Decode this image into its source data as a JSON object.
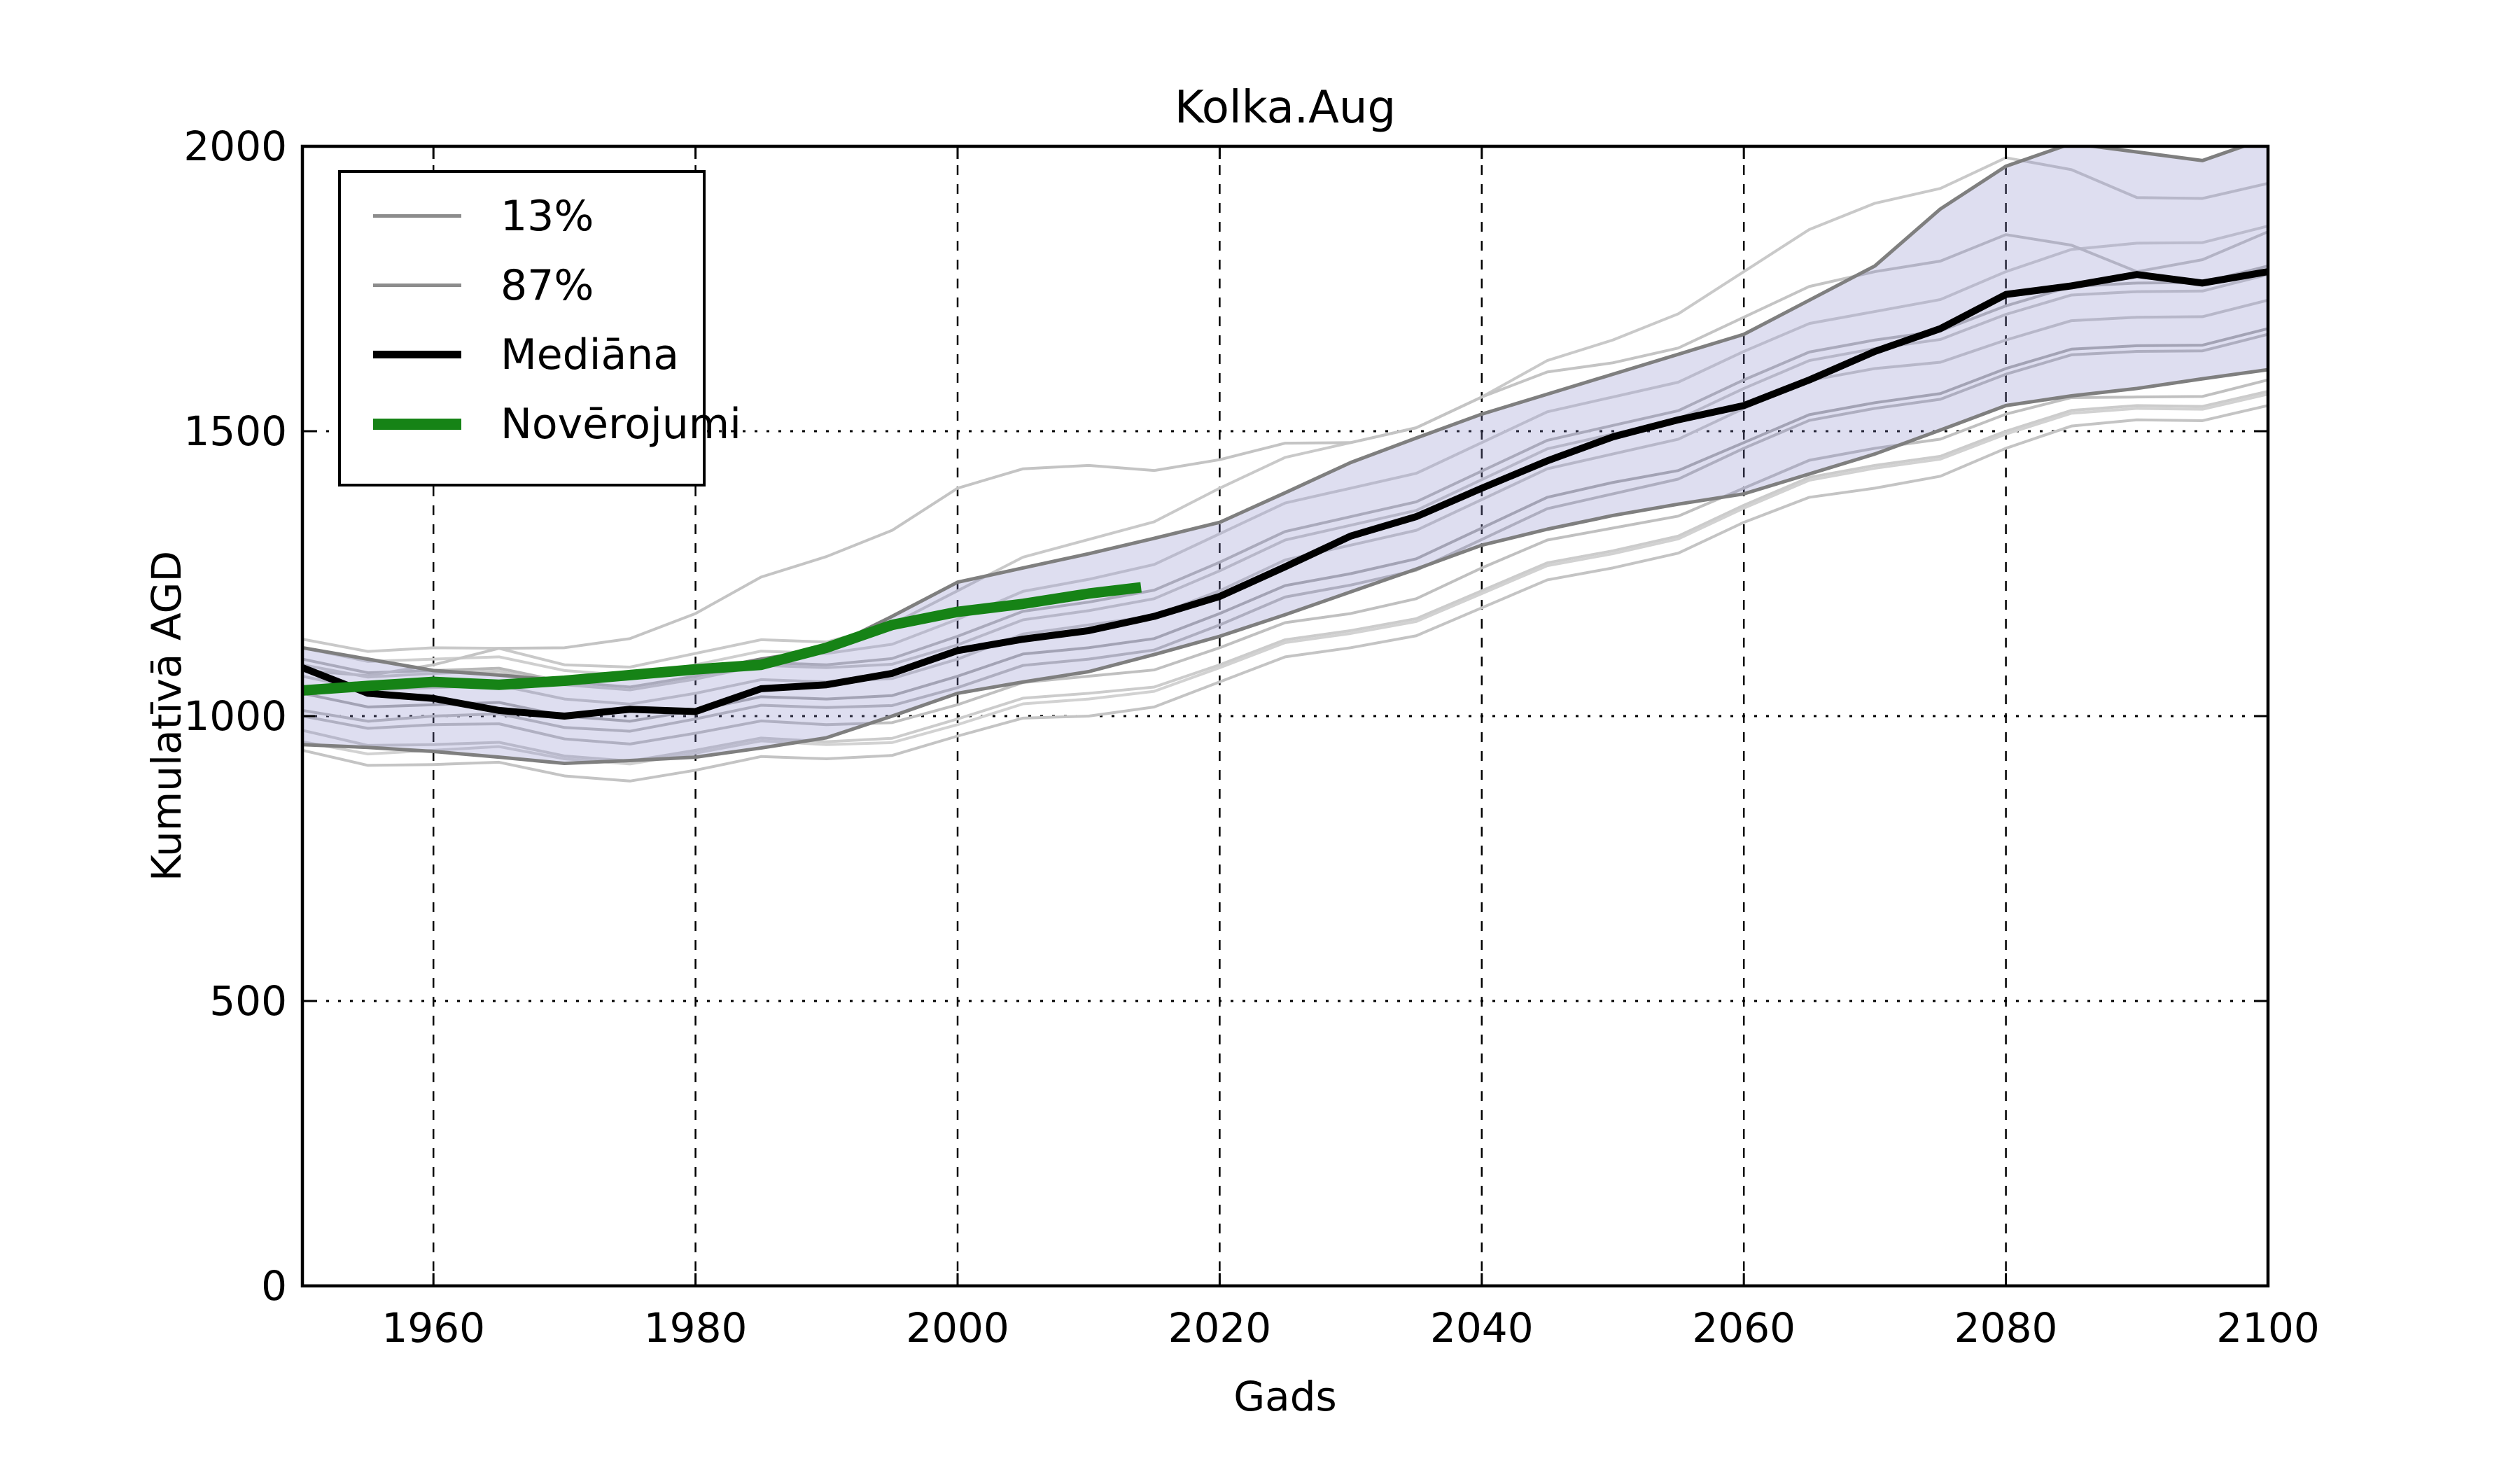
{
  "title": "Kolka.Aug",
  "legend": {
    "items": [
      {
        "label": "13%",
        "color": "#8c8c8c",
        "line_height": 5
      },
      {
        "label": "87%",
        "color": "#8c8c8c",
        "line_height": 5
      },
      {
        "label": "Mediāna",
        "color": "#000000",
        "line_height": 11
      },
      {
        "label": "Novērojumi",
        "color": "#168316",
        "line_height": 16
      }
    ]
  },
  "chart_data": {
    "type": "line",
    "title": "Kolka.Aug",
    "xlabel": "Gads",
    "ylabel": "Kumulatīvā AGD",
    "xlim": [
      1950,
      2100
    ],
    "ylim": [
      0,
      2000
    ],
    "xticks": [
      1960,
      1980,
      2000,
      2020,
      2040,
      2060,
      2080,
      2100
    ],
    "yticks": [
      0,
      500,
      1000,
      1500,
      2000
    ],
    "grid": true,
    "legend_position": "upper left",
    "axis_color": "#000000",
    "grid_color": "#000000",
    "band": {
      "name": "13-87% interval",
      "color": "#8888c8",
      "opacity": 0.28,
      "x": [
        1950,
        1955,
        1960,
        1965,
        1970,
        1975,
        1980,
        1985,
        1990,
        1995,
        2000,
        2005,
        2010,
        2015,
        2020,
        2025,
        2030,
        2035,
        2040,
        2045,
        2050,
        2055,
        2060,
        2065,
        2070,
        2075,
        2080,
        2085,
        2090,
        2095,
        2100
      ],
      "lower": [
        950,
        945,
        938,
        928,
        917,
        922,
        928,
        944,
        962,
        1000,
        1040,
        1060,
        1078,
        1108,
        1140,
        1178,
        1218,
        1258,
        1300,
        1328,
        1352,
        1372,
        1390,
        1425,
        1460,
        1502,
        1545,
        1562,
        1575,
        1592,
        1608
      ],
      "upper": [
        1120,
        1100,
        1080,
        1072,
        1062,
        1068,
        1078,
        1100,
        1118,
        1175,
        1235,
        1260,
        1285,
        1312,
        1340,
        1392,
        1445,
        1488,
        1530,
        1565,
        1600,
        1635,
        1670,
        1730,
        1790,
        1890,
        1965,
        2005,
        1990,
        1975,
        2015
      ]
    },
    "percentile_style": {
      "color": "#7f7f7f",
      "width": 5,
      "lower_label": "13%",
      "upper_label": "87%"
    },
    "series": [
      {
        "name": "Mediāna",
        "role": "median",
        "color": "#000000",
        "width": 10,
        "x": [
          1950,
          1955,
          1960,
          1965,
          1970,
          1975,
          1980,
          1985,
          1990,
          1995,
          2000,
          2005,
          2010,
          2015,
          2020,
          2025,
          2030,
          2035,
          2040,
          2045,
          2050,
          2055,
          2060,
          2065,
          2070,
          2075,
          2080,
          2085,
          2090,
          2095,
          2100
        ],
        "y": [
          1085,
          1040,
          1031,
          1010,
          1000,
          1012,
          1008,
          1048,
          1055,
          1075,
          1115,
          1135,
          1150,
          1175,
          1210,
          1262,
          1316,
          1350,
          1400,
          1448,
          1490,
          1520,
          1545,
          1590,
          1640,
          1680,
          1740,
          1755,
          1775,
          1760,
          1780
        ]
      },
      {
        "name": "Novērojumi",
        "role": "observations",
        "color": "#168316",
        "width": 15,
        "x": [
          1950,
          1955,
          1960,
          1965,
          1970,
          1975,
          1980,
          1985,
          1990,
          1995,
          2000,
          2005,
          2010,
          2014
        ],
        "y": [
          1045,
          1053,
          1060,
          1055,
          1062,
          1072,
          1082,
          1090,
          1120,
          1160,
          1183,
          1197,
          1215,
          1226
        ]
      }
    ],
    "ensemble": {
      "name": "ensemble members",
      "width": 4,
      "x": [
        1950,
        1960,
        1970,
        1980,
        1990,
        2000,
        2010,
        2020,
        2030,
        2040,
        2050,
        2060,
        2070,
        2080,
        2090,
        2100
      ],
      "member_colors": [
        "#c9c9c9",
        "#c4c4c4",
        "#cccccc",
        "#c0c0c0",
        "#adadad",
        "#c9c9c9",
        "#b8b8b8",
        "#cfcfcf",
        "#c4c4c4",
        "#bdbdbd",
        "#c9c9c9",
        "#d2d2d2"
      ],
      "members": [
        [
          1135,
          1120,
          1090,
          1110,
          1130,
          1220,
          1310,
          1400,
          1480,
          1560,
          1660,
          1780,
          1900,
          1980,
          1910,
          1935
        ],
        [
          940,
          915,
          895,
          905,
          925,
          965,
          1000,
          1060,
          1120,
          1190,
          1260,
          1340,
          1400,
          1470,
          1520,
          1545
        ],
        [
          975,
          950,
          930,
          940,
          955,
          995,
          1040,
          1090,
          1150,
          1220,
          1290,
          1370,
          1440,
          1500,
          1545,
          1570
        ],
        [
          1000,
          985,
          960,
          970,
          985,
          1020,
          1070,
          1120,
          1180,
          1260,
          1330,
          1400,
          1470,
          1530,
          1560,
          1590
        ],
        [
          1040,
          1020,
          1000,
          1010,
          1030,
          1070,
          1120,
          1180,
          1250,
          1330,
          1410,
          1480,
          1550,
          1610,
          1650,
          1680
        ],
        [
          1070,
          1050,
          1030,
          1040,
          1060,
          1100,
          1160,
          1220,
          1300,
          1380,
          1460,
          1540,
          1610,
          1660,
          1700,
          1730
        ],
        [
          1100,
          1080,
          1060,
          1070,
          1090,
          1140,
          1200,
          1270,
          1350,
          1430,
          1510,
          1590,
          1660,
          1720,
          1760,
          1790
        ],
        [
          1120,
          1100,
          1080,
          1090,
          1110,
          1170,
          1240,
          1320,
          1400,
          1480,
          1560,
          1640,
          1710,
          1780,
          1830,
          1860
        ],
        [
          1080,
          1090,
          1120,
          1180,
          1280,
          1400,
          1440,
          1450,
          1480,
          1560,
          1620,
          1700,
          1780,
          1845,
          1780,
          1850
        ],
        [
          1010,
          1000,
          980,
          995,
          1015,
          1050,
          1100,
          1160,
          1230,
          1310,
          1390,
          1470,
          1540,
          1600,
          1640,
          1670
        ],
        [
          1090,
          1075,
          1055,
          1065,
          1085,
          1125,
          1185,
          1255,
          1335,
          1415,
          1495,
          1575,
          1645,
          1705,
          1745,
          1775
        ],
        [
          955,
          940,
          925,
          935,
          950,
          985,
          1030,
          1085,
          1145,
          1215,
          1285,
          1365,
          1435,
          1495,
          1540,
          1565
        ]
      ]
    }
  }
}
